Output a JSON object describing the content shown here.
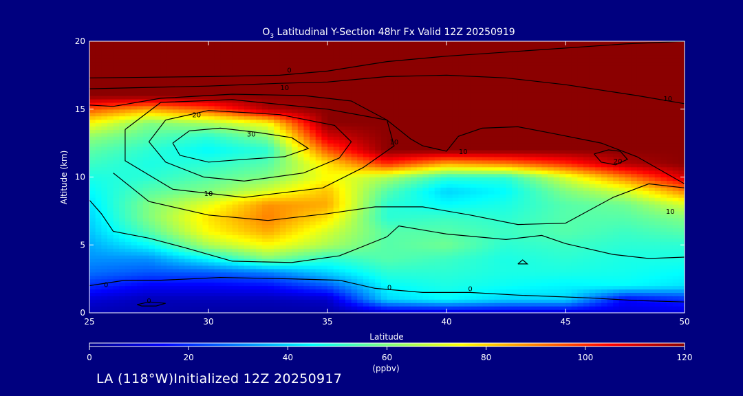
{
  "colors": {
    "background": "#00007f",
    "axis": "#ffffff",
    "contour": "#000000",
    "colormap": [
      "#00008b",
      "#0000ff",
      "#0080ff",
      "#00ffff",
      "#80ff80",
      "#ffff00",
      "#ff8000",
      "#ff0000",
      "#8b0000"
    ]
  },
  "chart_data": {
    "type": "heatmap",
    "title_prefix": "O",
    "title_subscript": "3",
    "title_suffix": " Latitudinal Y-Section 48hr  Fx Valid 12Z 20250919",
    "xlabel": "Latitude",
    "ylabel": "Altitude (km)",
    "xlim": [
      25,
      50
    ],
    "ylim": [
      0,
      20
    ],
    "xticks": [
      25,
      30,
      35,
      40,
      45,
      50
    ],
    "yticks": [
      0,
      5,
      10,
      15,
      20
    ],
    "x": [
      25,
      27.5,
      30,
      32.5,
      35,
      37.5,
      40,
      42.5,
      45,
      47.5,
      50
    ],
    "y": [
      0,
      1,
      2,
      3,
      4,
      5,
      6,
      7,
      8,
      9,
      10,
      11,
      12,
      13,
      14,
      15,
      16,
      17,
      18,
      19,
      20
    ],
    "values": [
      [
        5,
        4,
        3,
        3,
        3,
        8,
        8,
        8,
        8,
        10,
        10
      ],
      [
        10,
        6,
        6,
        6,
        8,
        40,
        45,
        40,
        40,
        15,
        20
      ],
      [
        20,
        14,
        14,
        16,
        25,
        45,
        48,
        46,
        44,
        45,
        42
      ],
      [
        28,
        25,
        26,
        30,
        40,
        50,
        50,
        48,
        48,
        47,
        45
      ],
      [
        32,
        32,
        45,
        60,
        50,
        55,
        52,
        48,
        50,
        48,
        48
      ],
      [
        35,
        45,
        65,
        75,
        65,
        55,
        58,
        50,
        52,
        50,
        50
      ],
      [
        38,
        55,
        75,
        85,
        70,
        55,
        55,
        52,
        55,
        52,
        55
      ],
      [
        40,
        60,
        78,
        90,
        78,
        50,
        52,
        50,
        55,
        55,
        60
      ],
      [
        42,
        60,
        72,
        88,
        85,
        50,
        45,
        48,
        55,
        58,
        70
      ],
      [
        45,
        55,
        60,
        70,
        82,
        55,
        40,
        45,
        60,
        70,
        90
      ],
      [
        48,
        50,
        55,
        60,
        75,
        65,
        50,
        50,
        70,
        90,
        110
      ],
      [
        52,
        48,
        50,
        55,
        78,
        100,
        85,
        90,
        100,
        115,
        120
      ],
      [
        56,
        50,
        45,
        50,
        95,
        120,
        120,
        120,
        120,
        120,
        120
      ],
      [
        62,
        55,
        50,
        60,
        110,
        120,
        120,
        120,
        120,
        120,
        120
      ],
      [
        75,
        60,
        65,
        75,
        120,
        120,
        120,
        120,
        120,
        120,
        120
      ],
      [
        95,
        85,
        95,
        115,
        120,
        120,
        120,
        120,
        120,
        120,
        120
      ],
      [
        120,
        120,
        120,
        120,
        120,
        120,
        120,
        120,
        120,
        120,
        120
      ],
      [
        120,
        120,
        120,
        120,
        120,
        120,
        120,
        120,
        120,
        120,
        120
      ],
      [
        120,
        120,
        120,
        120,
        120,
        120,
        120,
        120,
        120,
        120,
        120
      ],
      [
        120,
        120,
        120,
        120,
        120,
        120,
        120,
        120,
        120,
        120,
        120
      ],
      [
        120,
        120,
        120,
        120,
        120,
        120,
        120,
        120,
        120,
        120,
        120
      ]
    ],
    "contours": [
      {
        "name": "ring-30",
        "points": [
          [
            28.5,
            12.5
          ],
          [
            29.2,
            13.4
          ],
          [
            30.5,
            13.6
          ],
          [
            32,
            13.3
          ],
          [
            33.5,
            12.9
          ],
          [
            34.2,
            12.1
          ],
          [
            33.2,
            11.5
          ],
          [
            31.5,
            11.3
          ],
          [
            30,
            11.1
          ],
          [
            28.8,
            11.6
          ],
          [
            28.5,
            12.5
          ]
        ]
      },
      {
        "name": "ring-20",
        "points": [
          [
            28.2,
            14.2
          ],
          [
            30,
            14.9
          ],
          [
            33,
            14.6
          ],
          [
            35.3,
            13.8
          ],
          [
            36,
            12.6
          ],
          [
            35.5,
            11.4
          ],
          [
            34,
            10.3
          ],
          [
            31.5,
            9.7
          ],
          [
            29.8,
            10
          ],
          [
            28.2,
            11.1
          ],
          [
            27.5,
            12.6
          ],
          [
            28.2,
            14.2
          ]
        ]
      },
      {
        "name": "ring-10",
        "points": [
          [
            26.5,
            13.5
          ],
          [
            28,
            15.5
          ],
          [
            31,
            15.7
          ],
          [
            35,
            15
          ],
          [
            37.5,
            14.2
          ],
          [
            37.8,
            12.3
          ],
          [
            36.5,
            10.7
          ],
          [
            34.8,
            9.2
          ],
          [
            31.5,
            8.5
          ],
          [
            28.5,
            9.1
          ],
          [
            26.5,
            11.2
          ],
          [
            26.5,
            13.5
          ]
        ]
      },
      {
        "name": "ring-10-small",
        "points": [
          [
            46.2,
            11.7
          ],
          [
            46.8,
            12
          ],
          [
            47.3,
            11.9
          ],
          [
            47.6,
            11.3
          ],
          [
            47.1,
            10.9
          ],
          [
            46.5,
            11.1
          ],
          [
            46.2,
            11.7
          ]
        ]
      },
      {
        "name": "ring-0-small",
        "points": [
          [
            27,
            0.6
          ],
          [
            27.5,
            0.8
          ],
          [
            28.2,
            0.7
          ],
          [
            27.8,
            0.5
          ],
          [
            27.2,
            0.5
          ],
          [
            27,
            0.6
          ]
        ]
      },
      {
        "name": "ring-tiny",
        "points": [
          [
            43,
            3.6
          ],
          [
            43.2,
            3.9
          ],
          [
            43.4,
            3.6
          ],
          [
            43,
            3.6
          ]
        ]
      },
      {
        "name": "line-a",
        "points": [
          [
            25,
            17.3
          ],
          [
            30,
            17.4
          ],
          [
            33,
            17.5
          ],
          [
            35,
            17.8
          ],
          [
            37.5,
            18.5
          ],
          [
            40,
            18.9
          ],
          [
            42.5,
            19.2
          ],
          [
            45,
            19.5
          ],
          [
            47.5,
            19.8
          ],
          [
            50,
            20
          ]
        ]
      },
      {
        "name": "line-b",
        "points": [
          [
            25,
            16.5
          ],
          [
            30,
            16.7
          ],
          [
            33,
            16.9
          ],
          [
            35,
            17
          ],
          [
            37.5,
            17.4
          ],
          [
            40,
            17.5
          ],
          [
            42.5,
            17.3
          ],
          [
            45,
            16.8
          ],
          [
            48,
            16
          ],
          [
            50,
            15.4
          ]
        ]
      },
      {
        "name": "line-c",
        "points": [
          [
            25,
            15.3
          ],
          [
            26,
            15.2
          ],
          [
            28,
            15.8
          ],
          [
            31,
            16.1
          ],
          [
            34,
            16
          ],
          [
            36,
            15.6
          ],
          [
            37.5,
            14.2
          ],
          [
            38.5,
            12.8
          ],
          [
            39,
            12.3
          ],
          [
            39.5,
            12.1
          ],
          [
            40,
            11.9
          ],
          [
            40.5,
            13
          ],
          [
            41.5,
            13.6
          ],
          [
            43,
            13.7
          ],
          [
            44.5,
            13.2
          ],
          [
            46.5,
            12.5
          ],
          [
            48,
            11.5
          ],
          [
            49,
            10.5
          ],
          [
            50,
            9.5
          ]
        ]
      },
      {
        "name": "line-d",
        "points": [
          [
            25,
            8.3
          ],
          [
            25.5,
            7.3
          ],
          [
            26,
            6
          ],
          [
            27.5,
            5.5
          ],
          [
            29,
            4.8
          ],
          [
            31,
            3.8
          ],
          [
            33.5,
            3.7
          ],
          [
            35.5,
            4.2
          ],
          [
            37.5,
            5.6
          ],
          [
            38,
            6.4
          ],
          [
            40,
            5.8
          ],
          [
            42.5,
            5.4
          ],
          [
            44,
            5.7
          ],
          [
            45,
            5.1
          ],
          [
            47,
            4.3
          ],
          [
            48.5,
            4
          ],
          [
            50,
            4.1
          ]
        ]
      },
      {
        "name": "line-e",
        "points": [
          [
            25,
            2
          ],
          [
            26.5,
            2.4
          ],
          [
            28,
            2.4
          ],
          [
            30.5,
            2.6
          ],
          [
            33.5,
            2.5
          ],
          [
            35.5,
            2.4
          ],
          [
            37,
            1.8
          ],
          [
            39,
            1.5
          ],
          [
            41,
            1.5
          ],
          [
            43,
            1.3
          ],
          [
            46,
            1.1
          ],
          [
            48,
            0.9
          ],
          [
            50,
            0.8
          ]
        ]
      },
      {
        "name": "line-f",
        "points": [
          [
            26,
            10.3
          ],
          [
            27.5,
            8.2
          ],
          [
            30,
            7.2
          ],
          [
            32.5,
            6.8
          ],
          [
            35,
            7.3
          ],
          [
            37,
            7.8
          ],
          [
            39,
            7.8
          ],
          [
            41,
            7.2
          ],
          [
            43,
            6.5
          ],
          [
            45,
            6.6
          ],
          [
            47,
            8.5
          ],
          [
            48.5,
            9.5
          ],
          [
            50,
            9.2
          ]
        ]
      }
    ],
    "contour_labels": [
      {
        "text": "0",
        "x": 33.4,
        "y": 17.9
      },
      {
        "text": "10",
        "x": 33.2,
        "y": 16.6
      },
      {
        "text": "20",
        "x": 29.5,
        "y": 14.6
      },
      {
        "text": "30",
        "x": 31.8,
        "y": 13.2
      },
      {
        "text": "10",
        "x": 30,
        "y": 8.8
      },
      {
        "text": "10",
        "x": 37.8,
        "y": 12.6
      },
      {
        "text": "10",
        "x": 40.7,
        "y": 11.9
      },
      {
        "text": "10",
        "x": 49.3,
        "y": 15.8
      },
      {
        "text": "20",
        "x": 47.2,
        "y": 11.2
      },
      {
        "text": "10",
        "x": 49.4,
        "y": 7.5
      },
      {
        "text": "0",
        "x": 25.7,
        "y": 2.1
      },
      {
        "text": "0",
        "x": 27.5,
        "y": 0.9
      },
      {
        "text": "0",
        "x": 37.6,
        "y": 1.9
      },
      {
        "text": "0",
        "x": 41,
        "y": 1.8
      }
    ],
    "colorbar": {
      "min": 0,
      "max": 120,
      "ticks": [
        0,
        20,
        40,
        60,
        80,
        100,
        120
      ],
      "label": "(ppbv)"
    }
  },
  "footer": {
    "caption": "LA (118°W)Initialized 12Z 20250917"
  }
}
